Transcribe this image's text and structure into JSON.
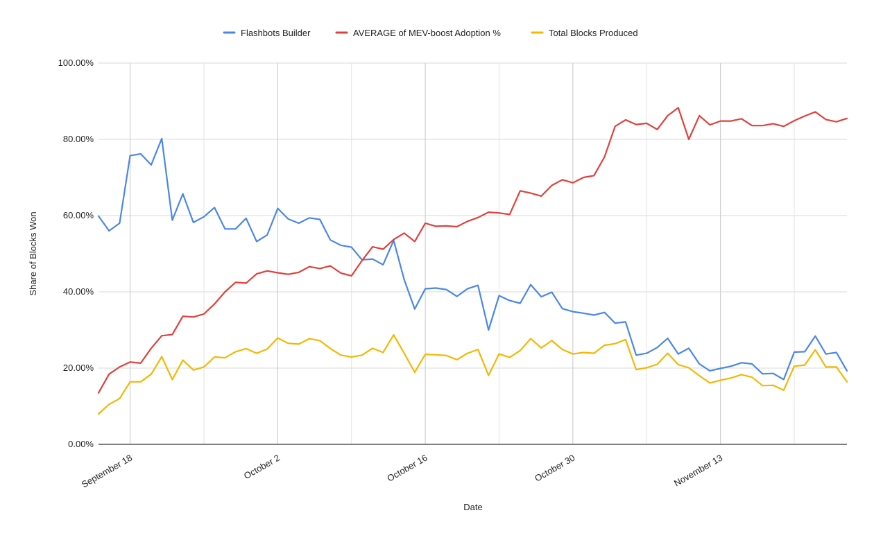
{
  "chart_data": {
    "type": "line",
    "title": "",
    "xlabel": "Date",
    "ylabel": "Share of Blocks Won",
    "ylim": [
      0,
      1
    ],
    "y_ticks": [
      "0.00%",
      "20.00%",
      "40.00%",
      "60.00%",
      "80.00%",
      "100.00%"
    ],
    "x_ticks": [
      "September 18",
      "October 2",
      "October 16",
      "October 30",
      "November 13"
    ],
    "x_start": "September 15",
    "x_end": "November 24",
    "grid": true,
    "legend_position": "top",
    "series": [
      {
        "name": "Flashbots Builder",
        "color": "#4a86e8",
        "values": [
          0.599,
          0.56,
          0.58,
          0.757,
          0.762,
          0.733,
          0.802,
          0.588,
          0.657,
          0.582,
          0.597,
          0.621,
          0.565,
          0.565,
          0.593,
          0.532,
          0.549,
          0.619,
          0.591,
          0.58,
          0.594,
          0.59,
          0.536,
          0.522,
          0.517,
          0.484,
          0.486,
          0.471,
          0.535,
          0.432,
          0.355,
          0.408,
          0.41,
          0.406,
          0.388,
          0.408,
          0.417,
          0.3,
          0.39,
          0.377,
          0.37,
          0.419,
          0.387,
          0.399,
          0.356,
          0.348,
          0.344,
          0.339,
          0.346,
          0.318,
          0.321,
          0.234,
          0.239,
          0.254,
          0.278,
          0.237,
          0.252,
          0.211,
          0.193,
          0.199,
          0.205,
          0.214,
          0.211,
          0.185,
          0.186,
          0.17,
          0.242,
          0.243,
          0.284,
          0.237,
          0.241,
          0.193
        ]
      },
      {
        "name": "AVERAGE of MEV-boost Adoption %",
        "color": "#e0403a",
        "values": [
          0.135,
          0.184,
          0.203,
          0.216,
          0.213,
          0.252,
          0.285,
          0.288,
          0.336,
          0.334,
          0.342,
          0.368,
          0.4,
          0.425,
          0.423,
          0.447,
          0.455,
          0.45,
          0.446,
          0.451,
          0.466,
          0.461,
          0.468,
          0.449,
          0.442,
          0.482,
          0.518,
          0.512,
          0.537,
          0.554,
          0.532,
          0.58,
          0.572,
          0.573,
          0.571,
          0.585,
          0.595,
          0.609,
          0.607,
          0.603,
          0.665,
          0.659,
          0.651,
          0.679,
          0.694,
          0.686,
          0.7,
          0.705,
          0.754,
          0.834,
          0.851,
          0.839,
          0.842,
          0.826,
          0.862,
          0.883,
          0.8,
          0.862,
          0.838,
          0.848,
          0.848,
          0.854,
          0.836,
          0.836,
          0.841,
          0.834,
          0.849,
          0.861,
          0.872,
          0.852,
          0.846,
          0.855
        ]
      },
      {
        "name": "Total Blocks Produced",
        "color": "#f5b700",
        "values": [
          0.08,
          0.105,
          0.12,
          0.164,
          0.164,
          0.184,
          0.23,
          0.17,
          0.221,
          0.195,
          0.203,
          0.229,
          0.227,
          0.243,
          0.251,
          0.239,
          0.25,
          0.279,
          0.265,
          0.263,
          0.277,
          0.272,
          0.251,
          0.234,
          0.229,
          0.234,
          0.252,
          0.241,
          0.287,
          0.239,
          0.189,
          0.236,
          0.235,
          0.233,
          0.222,
          0.239,
          0.249,
          0.181,
          0.237,
          0.228,
          0.246,
          0.277,
          0.253,
          0.272,
          0.249,
          0.237,
          0.241,
          0.239,
          0.26,
          0.264,
          0.275,
          0.196,
          0.201,
          0.21,
          0.239,
          0.209,
          0.201,
          0.18,
          0.161,
          0.168,
          0.174,
          0.183,
          0.176,
          0.154,
          0.155,
          0.142,
          0.205,
          0.208,
          0.248,
          0.203,
          0.203,
          0.164
        ]
      }
    ]
  }
}
